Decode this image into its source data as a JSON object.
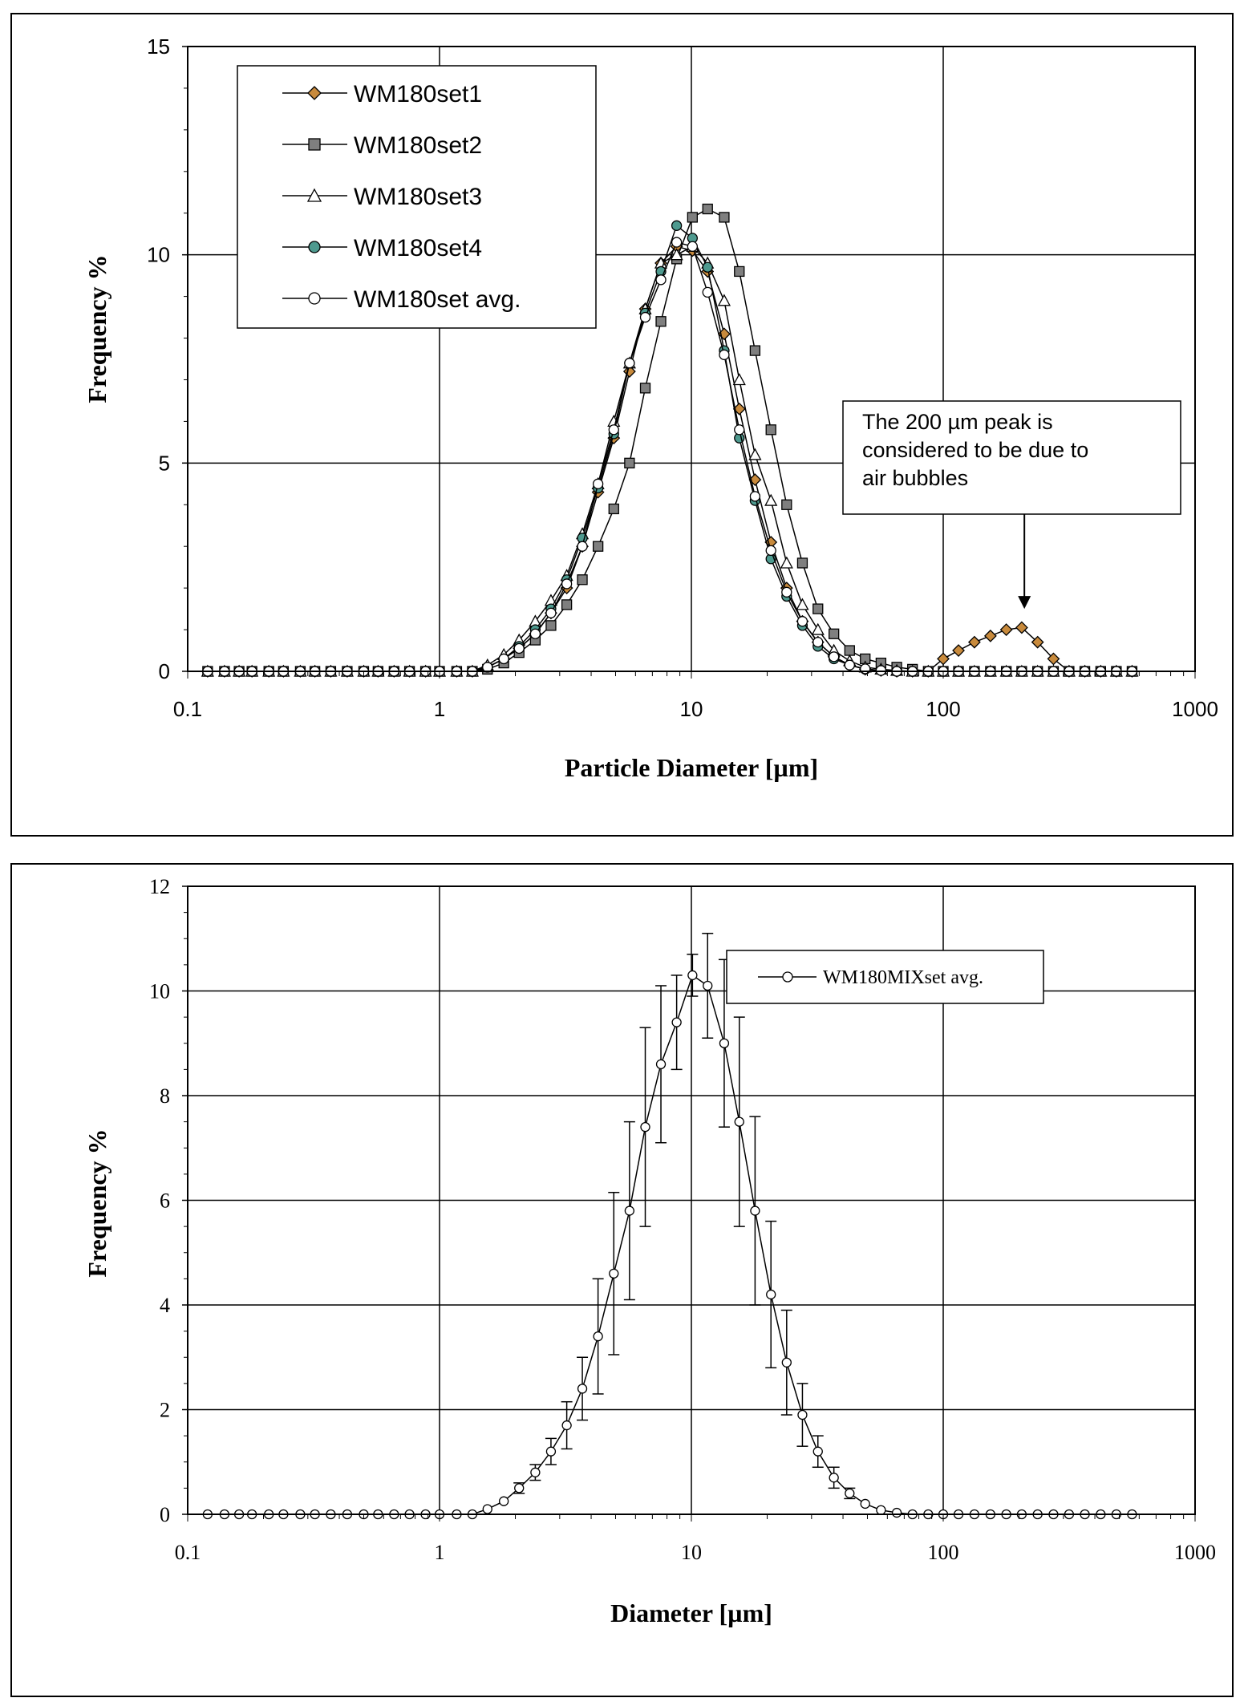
{
  "colors": {
    "set1": "#c88a3c",
    "set2": "#7f7f7f",
    "set3": "#ffffff",
    "set4": "#4e9a8f",
    "avg": "#ffffff",
    "line": "#000000"
  },
  "chart_data": [
    {
      "type": "line",
      "title": "",
      "xlabel": "Particle Diameter [µm]",
      "ylabel": "Frequency %",
      "xscale": "log",
      "xlim": [
        0.1,
        1000
      ],
      "ylim": [
        0,
        15
      ],
      "xticks": [
        "0.1",
        "1",
        "10",
        "100",
        "1000"
      ],
      "yticks": [
        "0",
        "5",
        "10",
        "15"
      ],
      "grid": true,
      "legend_position": "top-left",
      "annotation": [
        "The 200 µm peak is",
        "considered to be due to",
        "air bubbles"
      ],
      "annotation_arrow_target": [
        210,
        1.5
      ],
      "series": [
        {
          "name": "WM180set1",
          "marker": "diamond",
          "color_key": "set1",
          "x": [
            0.12,
            0.14,
            0.16,
            0.18,
            0.21,
            0.24,
            0.28,
            0.32,
            0.37,
            0.43,
            0.5,
            0.57,
            0.66,
            0.76,
            0.88,
            1.0,
            1.17,
            1.35,
            1.55,
            1.8,
            2.07,
            2.4,
            2.77,
            3.2,
            3.69,
            4.26,
            4.92,
            5.68,
            6.56,
            7.57,
            8.74,
            10.1,
            11.6,
            13.5,
            15.5,
            17.9,
            20.7,
            23.9,
            27.6,
            31.8,
            36.8,
            42.5,
            49.0,
            56.6,
            65.4,
            75.5,
            87.2,
            100,
            115,
            133,
            154,
            178,
            205,
            237,
            274,
            316,
            365,
            422,
            487,
            562
          ],
          "y": [
            0,
            0,
            0,
            0,
            0,
            0,
            0,
            0,
            0,
            0,
            0,
            0,
            0,
            0,
            0,
            0,
            0,
            0,
            0.1,
            0.3,
            0.55,
            0.9,
            1.4,
            2.0,
            3.0,
            4.3,
            5.6,
            7.2,
            8.7,
            9.8,
            10.2,
            10.1,
            9.6,
            8.1,
            6.3,
            4.6,
            3.1,
            2.0,
            1.2,
            0.7,
            0.35,
            0.15,
            0.05,
            0.02,
            0,
            0,
            0,
            0.3,
            0.5,
            0.7,
            0.85,
            1.0,
            1.05,
            0.7,
            0.3,
            0,
            0,
            0,
            0,
            0
          ]
        },
        {
          "name": "WM180set2",
          "marker": "square",
          "color_key": "set2",
          "x": [
            0.12,
            0.14,
            0.16,
            0.18,
            0.21,
            0.24,
            0.28,
            0.32,
            0.37,
            0.43,
            0.5,
            0.57,
            0.66,
            0.76,
            0.88,
            1.0,
            1.17,
            1.35,
            1.55,
            1.8,
            2.07,
            2.4,
            2.77,
            3.2,
            3.69,
            4.26,
            4.92,
            5.68,
            6.56,
            7.57,
            8.74,
            10.1,
            11.6,
            13.5,
            15.5,
            17.9,
            20.7,
            23.9,
            27.6,
            31.8,
            36.8,
            42.5,
            49.0,
            56.6,
            65.4,
            75.5,
            87.2,
            100,
            115,
            133,
            154,
            178,
            205,
            237,
            274,
            316,
            365,
            422,
            487,
            562
          ],
          "y": [
            0,
            0,
            0,
            0,
            0,
            0,
            0,
            0,
            0,
            0,
            0,
            0,
            0,
            0,
            0,
            0,
            0,
            0,
            0.05,
            0.2,
            0.45,
            0.75,
            1.1,
            1.6,
            2.2,
            3.0,
            3.9,
            5.0,
            6.8,
            8.4,
            9.9,
            10.9,
            11.1,
            10.9,
            9.6,
            7.7,
            5.8,
            4.0,
            2.6,
            1.5,
            0.9,
            0.5,
            0.3,
            0.2,
            0.1,
            0.05,
            0,
            0,
            0,
            0,
            0,
            0,
            0,
            0,
            0,
            0,
            0,
            0,
            0,
            0
          ]
        },
        {
          "name": "WM180set3",
          "marker": "triangle",
          "color_key": "set3",
          "x": [
            0.12,
            0.14,
            0.16,
            0.18,
            0.21,
            0.24,
            0.28,
            0.32,
            0.37,
            0.43,
            0.5,
            0.57,
            0.66,
            0.76,
            0.88,
            1.0,
            1.17,
            1.35,
            1.55,
            1.8,
            2.07,
            2.4,
            2.77,
            3.2,
            3.69,
            4.26,
            4.92,
            5.68,
            6.56,
            7.57,
            8.74,
            10.1,
            11.6,
            13.5,
            15.5,
            17.9,
            20.7,
            23.9,
            27.6,
            31.8,
            36.8,
            42.5,
            49.0,
            56.6,
            65.4,
            75.5,
            87.2,
            100,
            115,
            133,
            154,
            178,
            205,
            237,
            274,
            316,
            365,
            422,
            487,
            562
          ],
          "y": [
            0,
            0,
            0,
            0,
            0,
            0,
            0,
            0,
            0,
            0,
            0,
            0,
            0,
            0,
            0,
            0,
            0,
            0,
            0.15,
            0.4,
            0.75,
            1.2,
            1.7,
            2.3,
            3.3,
            4.5,
            6.0,
            7.4,
            8.7,
            9.8,
            10.0,
            10.2,
            9.8,
            8.9,
            7.0,
            5.2,
            4.1,
            2.6,
            1.6,
            1.0,
            0.5,
            0.25,
            0.1,
            0.05,
            0.02,
            0,
            0,
            0,
            0,
            0,
            0,
            0,
            0,
            0,
            0,
            0,
            0,
            0,
            0,
            0
          ]
        },
        {
          "name": "WM180set4",
          "marker": "circle",
          "color_key": "set4",
          "x": [
            0.12,
            0.14,
            0.16,
            0.18,
            0.21,
            0.24,
            0.28,
            0.32,
            0.37,
            0.43,
            0.5,
            0.57,
            0.66,
            0.76,
            0.88,
            1.0,
            1.17,
            1.35,
            1.55,
            1.8,
            2.07,
            2.4,
            2.77,
            3.2,
            3.69,
            4.26,
            4.92,
            5.68,
            6.56,
            7.57,
            8.74,
            10.1,
            11.6,
            13.5,
            15.5,
            17.9,
            20.7,
            23.9,
            27.6,
            31.8,
            36.8,
            42.5,
            49.0,
            56.6,
            65.4,
            75.5,
            87.2,
            100,
            115,
            133,
            154,
            178,
            205,
            237,
            274,
            316,
            365,
            422,
            487,
            562
          ],
          "y": [
            0,
            0,
            0,
            0,
            0,
            0,
            0,
            0,
            0,
            0,
            0,
            0,
            0,
            0,
            0,
            0,
            0,
            0,
            0.1,
            0.3,
            0.6,
            1.0,
            1.5,
            2.2,
            3.2,
            4.4,
            5.7,
            7.4,
            8.6,
            9.6,
            10.7,
            10.4,
            9.7,
            7.7,
            5.6,
            4.1,
            2.7,
            1.8,
            1.1,
            0.6,
            0.3,
            0.15,
            0.05,
            0.02,
            0,
            0,
            0,
            0,
            0,
            0,
            0,
            0,
            0,
            0,
            0,
            0,
            0,
            0,
            0,
            0
          ]
        },
        {
          "name": "WM180set avg.",
          "marker": "circle",
          "color_key": "avg",
          "x": [
            0.12,
            0.14,
            0.16,
            0.18,
            0.21,
            0.24,
            0.28,
            0.32,
            0.37,
            0.43,
            0.5,
            0.57,
            0.66,
            0.76,
            0.88,
            1.0,
            1.17,
            1.35,
            1.55,
            1.8,
            2.07,
            2.4,
            2.77,
            3.2,
            3.69,
            4.26,
            4.92,
            5.68,
            6.56,
            7.57,
            8.74,
            10.1,
            11.6,
            13.5,
            15.5,
            17.9,
            20.7,
            23.9,
            27.6,
            31.8,
            36.8,
            42.5,
            49.0,
            56.6,
            65.4,
            75.5,
            87.2,
            100,
            115,
            133,
            154,
            178,
            205,
            237,
            274,
            316,
            365,
            422,
            487,
            562
          ],
          "y": [
            0,
            0,
            0,
            0,
            0,
            0,
            0,
            0,
            0,
            0,
            0,
            0,
            0,
            0,
            0,
            0,
            0,
            0,
            0.1,
            0.3,
            0.55,
            0.9,
            1.4,
            2.1,
            3.0,
            4.5,
            5.8,
            7.4,
            8.5,
            9.4,
            10.3,
            10.2,
            9.1,
            7.6,
            5.8,
            4.2,
            2.9,
            1.9,
            1.2,
            0.7,
            0.35,
            0.15,
            0.06,
            0.02,
            0,
            0,
            0,
            0,
            0,
            0,
            0,
            0,
            0,
            0,
            0,
            0,
            0,
            0,
            0,
            0
          ]
        }
      ]
    },
    {
      "type": "line",
      "title": "",
      "xlabel": "Diameter [µm]",
      "ylabel": "Frequency %",
      "xscale": "log",
      "xlim": [
        0.1,
        1000
      ],
      "ylim": [
        0,
        12
      ],
      "xticks": [
        "0.1",
        "1",
        "10",
        "100",
        "1000"
      ],
      "yticks": [
        "0",
        "2",
        "4",
        "6",
        "8",
        "10",
        "12"
      ],
      "grid": true,
      "legend_position": "top-right",
      "series": [
        {
          "name": "WM180MIXset avg.",
          "marker": "circle",
          "color_key": "avg",
          "x": [
            0.12,
            0.14,
            0.16,
            0.18,
            0.21,
            0.24,
            0.28,
            0.32,
            0.37,
            0.43,
            0.5,
            0.57,
            0.66,
            0.76,
            0.88,
            1.0,
            1.17,
            1.35,
            1.55,
            1.8,
            2.07,
            2.4,
            2.77,
            3.2,
            3.69,
            4.26,
            4.92,
            5.68,
            6.56,
            7.57,
            8.74,
            10.1,
            11.6,
            13.5,
            15.5,
            17.9,
            20.7,
            23.9,
            27.6,
            31.8,
            36.8,
            42.5,
            49.0,
            56.6,
            65.4,
            75.5,
            87.2,
            100,
            115,
            133,
            154,
            178,
            205,
            237,
            274,
            316,
            365,
            422,
            487,
            562
          ],
          "y": [
            0,
            0,
            0,
            0,
            0,
            0,
            0,
            0,
            0,
            0,
            0,
            0,
            0,
            0,
            0,
            0,
            0,
            0,
            0.1,
            0.25,
            0.5,
            0.8,
            1.2,
            1.7,
            2.4,
            3.4,
            4.6,
            5.8,
            7.4,
            8.6,
            9.4,
            10.3,
            10.1,
            9.0,
            7.5,
            5.8,
            4.2,
            2.9,
            1.9,
            1.2,
            0.7,
            0.4,
            0.2,
            0.08,
            0.03,
            0,
            0,
            0,
            0,
            0,
            0,
            0,
            0,
            0,
            0,
            0,
            0,
            0,
            0,
            0
          ],
          "error": [
            0,
            0,
            0,
            0,
            0,
            0,
            0,
            0,
            0,
            0,
            0,
            0,
            0,
            0,
            0,
            0,
            0,
            0,
            0,
            0,
            0.1,
            0.15,
            0.25,
            0.45,
            0.6,
            1.1,
            1.55,
            1.7,
            1.9,
            1.5,
            0.9,
            0.4,
            1.0,
            1.6,
            2.0,
            1.8,
            1.4,
            1.0,
            0.6,
            0.3,
            0.2,
            0.1,
            0,
            0,
            0,
            0,
            0,
            0,
            0,
            0,
            0,
            0,
            0,
            0,
            0,
            0,
            0,
            0,
            0,
            0
          ]
        }
      ]
    }
  ]
}
